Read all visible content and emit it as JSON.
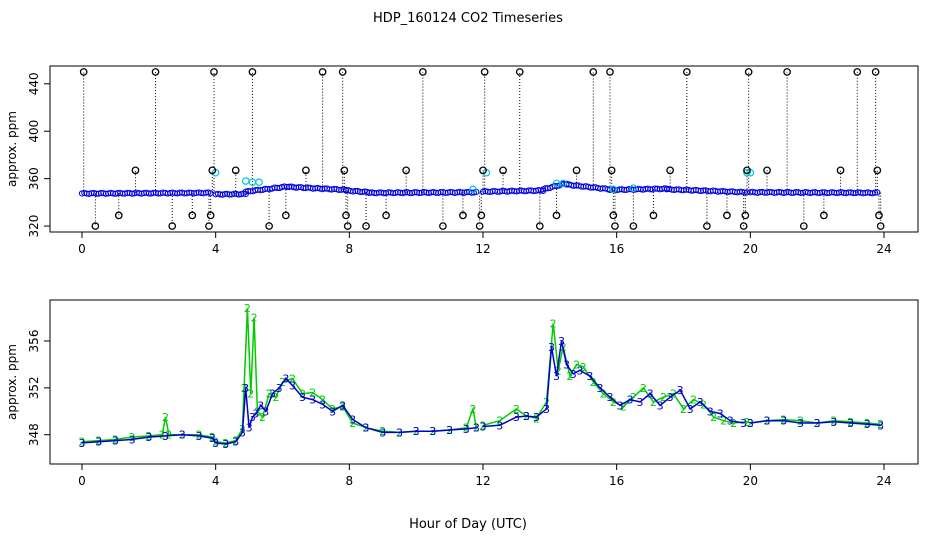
{
  "title": "HDP_160124  CO2 Timeseries",
  "xlabel": "Hour of Day (UTC)",
  "colors": {
    "axis": "#000000",
    "raw_point": "#000000",
    "dotted_spike": "#000000",
    "cleaned_point": "#0000dd",
    "flagged_point": "#00c8d8",
    "series1_line": "#00cc00",
    "series2_line": "#0000cc"
  },
  "chart_data": [
    {
      "type": "scatter",
      "ylabel": "approx. ppm",
      "xlim": [
        0,
        24
      ],
      "ylim": [
        315,
        455
      ],
      "xticks": [
        "0",
        "4",
        "8",
        "12",
        "16",
        "20",
        "24"
      ],
      "yticks": [
        "320",
        "360",
        "400",
        "440"
      ],
      "base_segments": [
        {
          "x0": 0.0,
          "x1": 3.85,
          "v0": 347.5,
          "v1": 348.0
        },
        {
          "x0": 4.0,
          "x1": 4.9,
          "v0": 346.8,
          "v1": 347.0
        },
        {
          "x0": 4.9,
          "x1": 6.2,
          "v0": 349.0,
          "v1": 353.5
        },
        {
          "x0": 6.2,
          "x1": 7.9,
          "v0": 353.0,
          "v1": 350.5
        },
        {
          "x0": 7.9,
          "x1": 8.6,
          "v0": 350.0,
          "v1": 348.5
        },
        {
          "x0": 8.6,
          "x1": 11.8,
          "v0": 348.0,
          "v1": 348.5
        },
        {
          "x0": 12.0,
          "x1": 13.8,
          "v0": 349.0,
          "v1": 350.0
        },
        {
          "x0": 13.8,
          "x1": 14.5,
          "v0": 351.0,
          "v1": 356.0
        },
        {
          "x0": 14.5,
          "x1": 15.8,
          "v0": 355.0,
          "v1": 351.0
        },
        {
          "x0": 15.8,
          "x1": 17.5,
          "v0": 350.5,
          "v1": 351.5
        },
        {
          "x0": 17.5,
          "x1": 19.9,
          "v0": 351.0,
          "v1": 348.5
        },
        {
          "x0": 20.0,
          "x1": 23.8,
          "v0": 348.5,
          "v1": 348.0
        }
      ],
      "flagged_points": [
        {
          "x": 4.0,
          "y": 365
        },
        {
          "x": 4.9,
          "y": 358
        },
        {
          "x": 5.1,
          "y": 357
        },
        {
          "x": 5.3,
          "y": 357
        },
        {
          "x": 11.7,
          "y": 351
        },
        {
          "x": 12.1,
          "y": 365
        },
        {
          "x": 14.2,
          "y": 356
        },
        {
          "x": 14.4,
          "y": 356
        },
        {
          "x": 15.9,
          "y": 351
        },
        {
          "x": 16.5,
          "y": 352
        },
        {
          "x": 19.9,
          "y": 365
        },
        {
          "x": 20.0,
          "y": 365
        }
      ],
      "spikes": [
        {
          "x": 0.05,
          "y": 450
        },
        {
          "x": 0.4,
          "y": 320
        },
        {
          "x": 1.1,
          "y": 329
        },
        {
          "x": 1.6,
          "y": 367
        },
        {
          "x": 2.2,
          "y": 450
        },
        {
          "x": 2.7,
          "y": 320
        },
        {
          "x": 3.3,
          "y": 329
        },
        {
          "x": 3.8,
          "y": 320
        },
        {
          "x": 3.85,
          "y": 329
        },
        {
          "x": 3.9,
          "y": 367
        },
        {
          "x": 3.95,
          "y": 450
        },
        {
          "x": 4.6,
          "y": 367
        },
        {
          "x": 5.1,
          "y": 450
        },
        {
          "x": 5.6,
          "y": 320
        },
        {
          "x": 6.1,
          "y": 329
        },
        {
          "x": 6.7,
          "y": 367
        },
        {
          "x": 7.2,
          "y": 450
        },
        {
          "x": 7.8,
          "y": 450
        },
        {
          "x": 7.85,
          "y": 367
        },
        {
          "x": 7.9,
          "y": 329
        },
        {
          "x": 7.95,
          "y": 320
        },
        {
          "x": 8.5,
          "y": 320
        },
        {
          "x": 9.1,
          "y": 329
        },
        {
          "x": 9.7,
          "y": 367
        },
        {
          "x": 10.2,
          "y": 450
        },
        {
          "x": 10.8,
          "y": 320
        },
        {
          "x": 11.4,
          "y": 329
        },
        {
          "x": 11.9,
          "y": 320
        },
        {
          "x": 11.95,
          "y": 329
        },
        {
          "x": 12.0,
          "y": 367
        },
        {
          "x": 12.05,
          "y": 450
        },
        {
          "x": 12.6,
          "y": 367
        },
        {
          "x": 13.1,
          "y": 450
        },
        {
          "x": 13.7,
          "y": 320
        },
        {
          "x": 14.2,
          "y": 329
        },
        {
          "x": 14.8,
          "y": 367
        },
        {
          "x": 15.3,
          "y": 450
        },
        {
          "x": 15.8,
          "y": 450
        },
        {
          "x": 15.85,
          "y": 367
        },
        {
          "x": 15.9,
          "y": 329
        },
        {
          "x": 15.95,
          "y": 320
        },
        {
          "x": 16.5,
          "y": 320
        },
        {
          "x": 17.1,
          "y": 329
        },
        {
          "x": 17.6,
          "y": 367
        },
        {
          "x": 18.1,
          "y": 450
        },
        {
          "x": 18.7,
          "y": 320
        },
        {
          "x": 19.3,
          "y": 329
        },
        {
          "x": 19.8,
          "y": 320
        },
        {
          "x": 19.85,
          "y": 329
        },
        {
          "x": 19.9,
          "y": 367
        },
        {
          "x": 19.95,
          "y": 450
        },
        {
          "x": 20.5,
          "y": 367
        },
        {
          "x": 21.1,
          "y": 450
        },
        {
          "x": 21.6,
          "y": 320
        },
        {
          "x": 22.2,
          "y": 329
        },
        {
          "x": 22.7,
          "y": 367
        },
        {
          "x": 23.2,
          "y": 450
        },
        {
          "x": 23.75,
          "y": 450
        },
        {
          "x": 23.8,
          "y": 367
        },
        {
          "x": 23.85,
          "y": 329
        },
        {
          "x": 23.9,
          "y": 320
        }
      ]
    },
    {
      "type": "line",
      "ylabel": "approx. ppm",
      "xlim": [
        0,
        24
      ],
      "ylim": [
        345.5,
        359.5
      ],
      "xticks": [
        "0",
        "4",
        "8",
        "12",
        "16",
        "20",
        "24"
      ],
      "yticks": [
        "348",
        "352",
        "356"
      ],
      "series": [
        {
          "name": "2",
          "label": "2",
          "color": "#00cc00",
          "x": [
            0.0,
            0.5,
            1.0,
            1.5,
            2.0,
            2.4,
            2.5,
            2.6,
            3.0,
            3.5,
            3.9,
            4.0,
            4.3,
            4.6,
            4.8,
            4.85,
            4.95,
            5.05,
            5.15,
            5.25,
            5.4,
            5.6,
            5.8,
            6.0,
            6.3,
            6.6,
            6.9,
            7.2,
            7.5,
            7.8,
            8.1,
            8.5,
            9.0,
            9.5,
            10.0,
            10.5,
            11.0,
            11.5,
            11.7,
            11.8,
            12.0,
            12.5,
            13.0,
            13.3,
            13.6,
            13.9,
            14.1,
            14.25,
            14.4,
            14.6,
            14.8,
            15.0,
            15.3,
            15.6,
            15.9,
            16.2,
            16.5,
            16.8,
            17.1,
            17.4,
            17.7,
            18.0,
            18.3,
            18.6,
            18.9,
            19.2,
            19.5,
            19.9,
            20.0,
            20.5,
            21.0,
            21.5,
            22.0,
            22.5,
            23.0,
            23.5,
            23.9
          ],
          "y": [
            347.4,
            347.5,
            347.6,
            347.8,
            347.9,
            348.0,
            349.5,
            348.0,
            348.0,
            348.0,
            347.8,
            347.4,
            347.3,
            347.5,
            348.5,
            352.0,
            358.8,
            351.5,
            358.0,
            350.0,
            349.5,
            351.5,
            351.2,
            352.5,
            352.8,
            351.5,
            351.6,
            351.0,
            350.2,
            350.4,
            349.0,
            348.6,
            348.3,
            348.2,
            348.3,
            348.3,
            348.4,
            348.6,
            350.2,
            348.6,
            348.8,
            349.2,
            350.2,
            349.6,
            349.4,
            350.8,
            357.5,
            353.5,
            355.5,
            353.0,
            354.0,
            353.8,
            352.5,
            351.5,
            350.8,
            350.4,
            351.2,
            352.0,
            350.8,
            351.2,
            351.5,
            350.2,
            351.0,
            350.6,
            349.5,
            349.2,
            349.0,
            349.1,
            349.0,
            349.2,
            349.3,
            349.2,
            349.0,
            349.2,
            349.1,
            349.0,
            348.9
          ]
        },
        {
          "name": "3",
          "label": "3",
          "color": "#0000cc",
          "x": [
            0.0,
            0.5,
            1.0,
            1.5,
            2.0,
            2.5,
            3.0,
            3.5,
            3.9,
            4.0,
            4.3,
            4.6,
            4.8,
            4.9,
            5.0,
            5.1,
            5.2,
            5.35,
            5.5,
            5.7,
            5.9,
            6.1,
            6.3,
            6.6,
            6.9,
            7.2,
            7.5,
            7.8,
            8.1,
            8.5,
            9.0,
            9.5,
            10.0,
            10.5,
            11.0,
            11.5,
            11.8,
            12.0,
            12.5,
            13.0,
            13.3,
            13.6,
            13.9,
            14.05,
            14.2,
            14.35,
            14.5,
            14.7,
            14.9,
            15.2,
            15.5,
            15.8,
            16.1,
            16.4,
            16.7,
            17.0,
            17.3,
            17.6,
            17.9,
            18.2,
            18.5,
            18.8,
            19.1,
            19.4,
            19.8,
            20.0,
            20.5,
            21.0,
            21.5,
            22.0,
            22.5,
            23.0,
            23.5,
            23.9
          ],
          "y": [
            347.3,
            347.4,
            347.5,
            347.6,
            347.8,
            347.9,
            348.0,
            347.9,
            347.7,
            347.3,
            347.2,
            347.4,
            348.2,
            352.0,
            348.6,
            349.5,
            349.8,
            350.5,
            350.0,
            351.5,
            352.0,
            352.8,
            352.2,
            351.2,
            351.0,
            350.6,
            350.0,
            350.5,
            349.3,
            348.6,
            348.2,
            348.2,
            348.3,
            348.3,
            348.4,
            348.5,
            348.6,
            348.7,
            348.8,
            349.5,
            349.6,
            349.5,
            350.2,
            355.5,
            353.0,
            356.0,
            354.0,
            353.2,
            353.5,
            353.0,
            352.0,
            351.2,
            350.5,
            351.0,
            350.8,
            351.5,
            350.5,
            351.2,
            351.8,
            350.2,
            350.8,
            350.0,
            349.8,
            349.2,
            349.0,
            349.0,
            349.2,
            349.2,
            349.0,
            349.0,
            349.1,
            349.0,
            348.9,
            348.8
          ]
        }
      ]
    }
  ]
}
